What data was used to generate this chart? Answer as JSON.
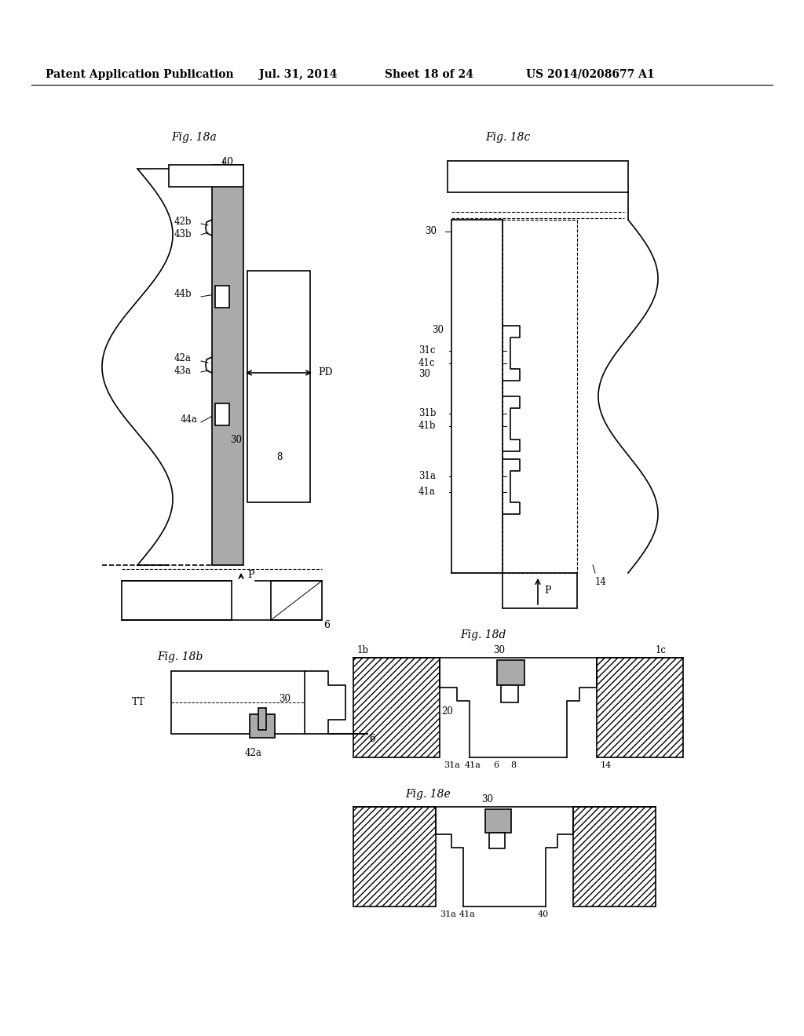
{
  "title_line1": "Patent Application Publication",
  "title_line2": "Jul. 31, 2014",
  "title_line3": "Sheet 18 of 24",
  "title_line4": "US 2014/0208677 A1",
  "background_color": "#ffffff",
  "line_color": "#000000",
  "gray_fill": "#aaaaaa",
  "fig18a_label": "Fig. 18a",
  "fig18b_label": "Fig. 18b",
  "fig18c_label": "Fig. 18c",
  "fig18d_label": "Fig. 18d",
  "fig18e_label": "Fig. 18e"
}
